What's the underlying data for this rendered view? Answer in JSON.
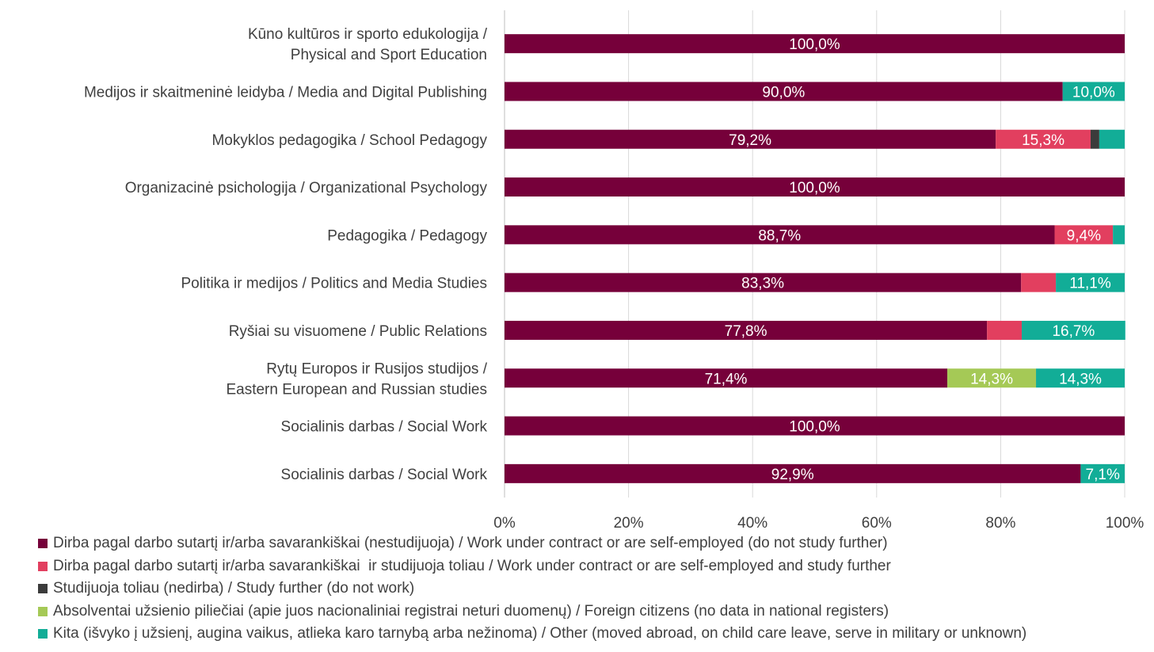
{
  "chart_data": {
    "type": "bar",
    "orientation": "horizontal",
    "stacked": "percent",
    "categories": [
      "Kūno kultūros ir sporto edukologija / Physical and Sport Education",
      "Medijos ir skaitmeninė leidyba / Media and Digital Publishing",
      "Mokyklos pedagogika / School Pedagogy",
      "Organizacinė psichologija / Organizational Psychology",
      "Pedagogika / Pedagogy",
      "Politika ir medijos / Politics and Media Studies",
      "Ryšiai su visuomene / Public Relations",
      "Rytų Europos ir Rusijos studijos / Eastern European and Russian studies",
      "Socialinis darbas / Social Work",
      "Socialinis darbas / Social Work"
    ],
    "category_lines": [
      [
        "Kūno kultūros ir sporto edukologija /",
        "Physical and Sport Education"
      ],
      [
        "Medijos ir skaitmeninė leidyba / Media and Digital Publishing"
      ],
      [
        "Mokyklos pedagogika / School Pedagogy"
      ],
      [
        "Organizacinė psichologija / Organizational Psychology"
      ],
      [
        "Pedagogika / Pedagogy"
      ],
      [
        "Politika ir medijos / Politics and Media Studies"
      ],
      [
        "Ryšiai su visuomene / Public Relations"
      ],
      [
        "Rytų Europos ir Rusijos studijos /",
        "Eastern European and Russian studies"
      ],
      [
        "Socialinis darbas / Social Work"
      ],
      [
        "Socialinis darbas / Social Work"
      ]
    ],
    "series": [
      {
        "name": "Dirba pagal darbo sutartį ir/arba savarankiškai (nestudijuoja) / Work under contract or are self-employed (do not study further)",
        "color": "#76003a",
        "values": [
          100.0,
          90.0,
          79.2,
          100.0,
          88.7,
          83.3,
          77.8,
          71.4,
          100.0,
          92.9
        ],
        "labels": [
          "100,0%",
          "90,0%",
          "79,2%",
          "100,0%",
          "88,7%",
          "83,3%",
          "77,8%",
          "71,4%",
          "100,0%",
          "92,9%"
        ]
      },
      {
        "name": "Dirba pagal darbo sutartį ir/arba savarankiškai  ir studijuoja toliau / Work under contract or are self-employed and study further",
        "color": "#e23f5f",
        "values": [
          0,
          0,
          15.3,
          0,
          9.4,
          5.6,
          5.6,
          0,
          0,
          0
        ],
        "labels": [
          "",
          "",
          "15,3%",
          "",
          "9,4%",
          "",
          "",
          "",
          "",
          ""
        ]
      },
      {
        "name": "Studijuoja toliau (nedirba) / Study further (do not work)",
        "color": "#3b3b3b",
        "values": [
          0,
          0,
          1.4,
          0,
          0,
          0,
          0,
          0,
          0,
          0
        ],
        "labels": [
          "",
          "",
          "",
          "",
          "",
          "",
          "",
          "",
          "",
          ""
        ]
      },
      {
        "name": "Absolventai užsienio piliečiai (apie juos nacionaliniai registrai neturi duomenų) / Foreign citizens (no data in national registers)",
        "color": "#a5c956",
        "values": [
          0,
          0,
          0,
          0,
          0,
          0,
          0,
          14.3,
          0,
          0
        ],
        "labels": [
          "",
          "",
          "",
          "",
          "",
          "",
          "",
          "14,3%",
          "",
          ""
        ]
      },
      {
        "name": "Kita (išvyko į užsienį, augina vaikus, atlieka karo tarnybą arba nežinoma) / Other (moved abroad, on child care leave, serve in military or unknown)",
        "color": "#12ad97",
        "values": [
          0,
          10.0,
          4.1,
          0,
          1.9,
          11.1,
          16.7,
          14.3,
          0,
          7.1
        ],
        "labels": [
          "",
          "10,0%",
          "",
          "",
          "",
          "11,1%",
          "16,7%",
          "14,3%",
          "",
          "7,1%"
        ]
      }
    ],
    "x_ticks": [
      "0%",
      "20%",
      "40%",
      "60%",
      "80%",
      "100%"
    ],
    "xlim": [
      0,
      100
    ],
    "grid": true,
    "legend_position": "bottom",
    "title": "",
    "xlabel": "",
    "ylabel": ""
  },
  "colors": {
    "grid": "#d9d9d9",
    "text": "#404040",
    "label_on_bar": "#ffffff"
  }
}
